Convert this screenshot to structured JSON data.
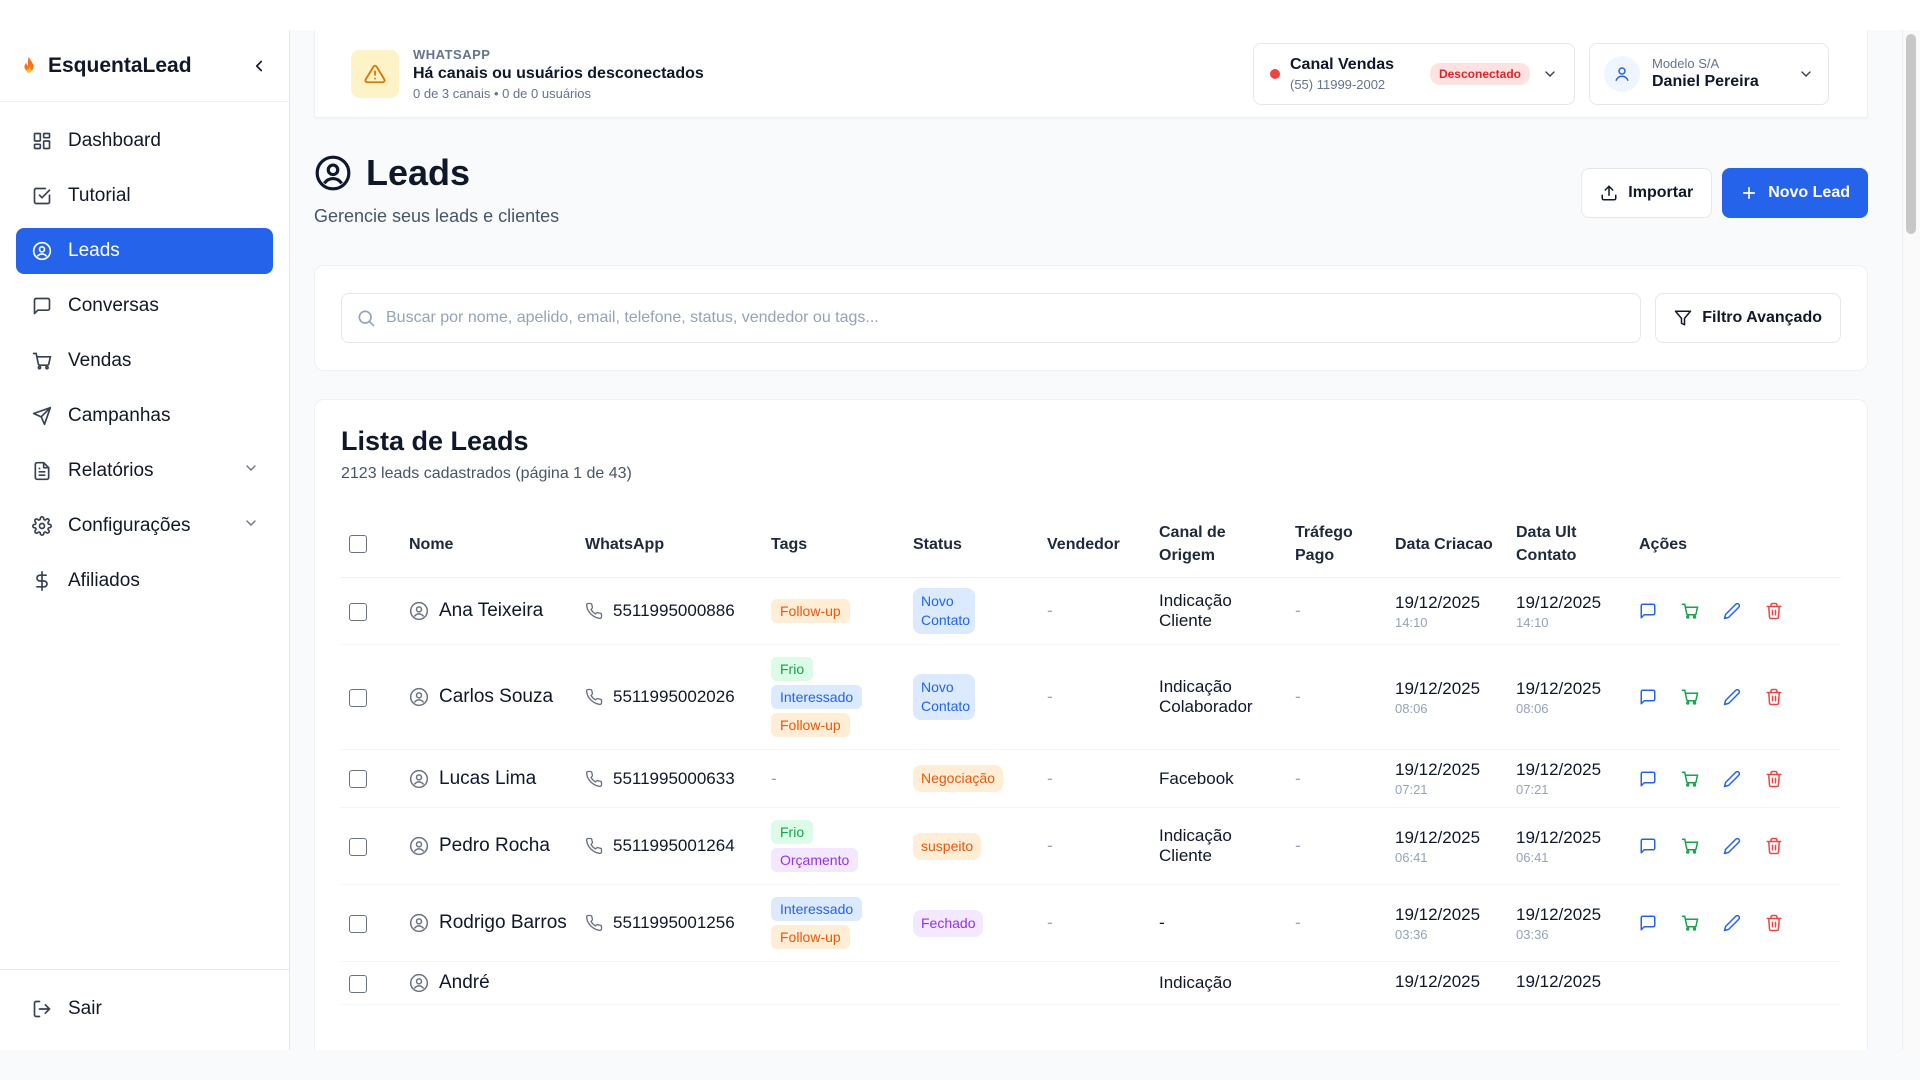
{
  "brand": {
    "name": "EsquentaLead"
  },
  "sidebar": {
    "items": [
      {
        "label": "Dashboard",
        "icon": "dashboard-icon"
      },
      {
        "label": "Tutorial",
        "icon": "checkbox-icon"
      },
      {
        "label": "Leads",
        "icon": "user-circle-icon",
        "active": true
      },
      {
        "label": "Conversas",
        "icon": "message-icon"
      },
      {
        "label": "Vendas",
        "icon": "cart-icon"
      },
      {
        "label": "Campanhas",
        "icon": "send-icon"
      },
      {
        "label": "Relatórios",
        "icon": "file-icon",
        "expandable": true
      },
      {
        "label": "Configurações",
        "icon": "gear-icon",
        "expandable": true
      },
      {
        "label": "Afiliados",
        "icon": "dollar-icon"
      }
    ],
    "logout": "Sair"
  },
  "alert": {
    "kicker": "WHATSAPP",
    "title": "Há canais ou usuários desconectados",
    "sub": "0 de 3 canais • 0 de 0 usuários"
  },
  "channel": {
    "name": "Canal Vendas",
    "phone": "(55) 11999-2002",
    "status": "Desconectado"
  },
  "user": {
    "org": "Modelo S/A",
    "name": "Daniel Pereira"
  },
  "page": {
    "title": "Leads",
    "subtitle": "Gerencie seus leads e clientes",
    "import_label": "Importar",
    "new_label": "Novo Lead"
  },
  "search": {
    "placeholder": "Buscar por nome, apelido, email, telefone, status, vendedor ou tags...",
    "filter_label": "Filtro Avançado"
  },
  "list": {
    "title": "Lista de Leads",
    "count": "2123 leads cadastrados (página 1 de 43)",
    "columns": [
      "Nome",
      "WhatsApp",
      "Tags",
      "Status",
      "Vendedor",
      "Canal de Origem",
      "Tráfego Pago",
      "Data Criacao",
      "Data Ult Contato",
      "Ações"
    ],
    "rows": [
      {
        "name": "Ana Teixeira",
        "phone": "5511995000886",
        "tags": [
          {
            "label": "Follow-up",
            "color": "orange"
          }
        ],
        "status": "Novo Contato",
        "status_color": "blue",
        "vendedor": "-",
        "origem": "Indicação Cliente",
        "trafego": "-",
        "criacao_d": "19/12/2025",
        "criacao_t": "14:10",
        "ult_d": "19/12/2025",
        "ult_t": "14:10"
      },
      {
        "name": "Carlos Souza",
        "phone": "5511995002026",
        "tags": [
          {
            "label": "Frio",
            "color": "green"
          },
          {
            "label": "Interessado",
            "color": "blue"
          },
          {
            "label": "Follow-up",
            "color": "orange"
          }
        ],
        "status": "Novo Contato",
        "status_color": "blue",
        "vendedor": "-",
        "origem": "Indicação Colaborador",
        "trafego": "-",
        "criacao_d": "19/12/2025",
        "criacao_t": "08:06",
        "ult_d": "19/12/2025",
        "ult_t": "08:06"
      },
      {
        "name": "Lucas Lima",
        "phone": "5511995000633",
        "tags": [],
        "tags_empty": "-",
        "status": "Negociação",
        "status_color": "orange",
        "vendedor": "-",
        "origem": "Facebook",
        "trafego": "-",
        "criacao_d": "19/12/2025",
        "criacao_t": "07:21",
        "ult_d": "19/12/2025",
        "ult_t": "07:21"
      },
      {
        "name": "Pedro Rocha",
        "phone": "5511995001264",
        "tags": [
          {
            "label": "Frio",
            "color": "green"
          },
          {
            "label": "Orçamento",
            "color": "purple"
          }
        ],
        "status": "suspeito",
        "status_color": "orange",
        "vendedor": "-",
        "origem": "Indicação Cliente",
        "trafego": "-",
        "criacao_d": "19/12/2025",
        "criacao_t": "06:41",
        "ult_d": "19/12/2025",
        "ult_t": "06:41"
      },
      {
        "name": "Rodrigo Barros",
        "phone": "5511995001256",
        "tags": [
          {
            "label": "Interessado",
            "color": "blue"
          },
          {
            "label": "Follow-up",
            "color": "orange"
          }
        ],
        "status": "Fechado",
        "status_color": "purple",
        "vendedor": "-",
        "origem": "-",
        "trafego": "-",
        "criacao_d": "19/12/2025",
        "criacao_t": "03:36",
        "ult_d": "19/12/2025",
        "ult_t": "03:36"
      },
      {
        "name": "André",
        "phone": "",
        "tags": [],
        "status": "",
        "status_color": "",
        "vendedor": "",
        "origem": "Indicação",
        "trafego": "",
        "criacao_d": "19/12/2025",
        "criacao_t": "",
        "ult_d": "19/12/2025",
        "ult_t": ""
      }
    ]
  },
  "colors": {
    "accent": "#2563eb",
    "danger": "#ef4444",
    "success": "#16a34a"
  }
}
